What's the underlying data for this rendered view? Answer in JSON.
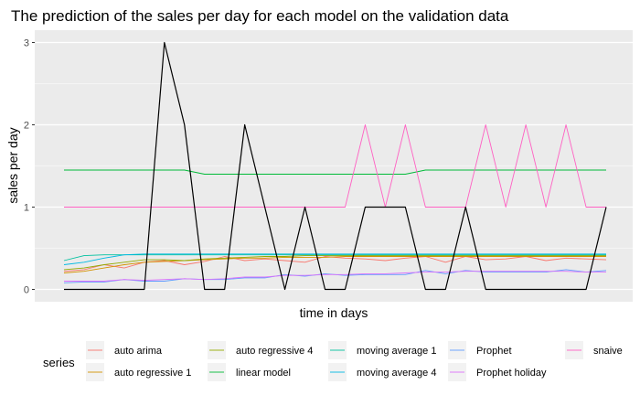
{
  "chart_data": {
    "type": "line",
    "title": "The prediction of the sales per day for each model on the validation data",
    "xlabel": "time in days",
    "ylabel": "sales per day",
    "ylim": [
      -0.15,
      3.15
    ],
    "yticks": [
      0,
      1,
      2,
      3
    ],
    "grid": true,
    "legend_position": "bottom",
    "legend_title": "series",
    "n_days": 28,
    "series": [
      {
        "name": "auto arima",
        "color": "#F8766D",
        "values": [
          0.22,
          0.24,
          0.3,
          0.26,
          0.33,
          0.35,
          0.3,
          0.34,
          0.4,
          0.35,
          0.37,
          0.35,
          0.33,
          0.4,
          0.38,
          0.37,
          0.35,
          0.38,
          0.4,
          0.33,
          0.4,
          0.36,
          0.37,
          0.4,
          0.35,
          0.38,
          0.37,
          0.36
        ]
      },
      {
        "name": "auto regressive 1",
        "color": "#D39200",
        "values": [
          0.2,
          0.22,
          0.26,
          0.3,
          0.33,
          0.34,
          0.35,
          0.36,
          0.37,
          0.38,
          0.38,
          0.39,
          0.39,
          0.39,
          0.4,
          0.4,
          0.4,
          0.4,
          0.4,
          0.4,
          0.4,
          0.4,
          0.4,
          0.4,
          0.4,
          0.4,
          0.4,
          0.4
        ]
      },
      {
        "name": "auto regressive 4",
        "color": "#93AA00",
        "values": [
          0.24,
          0.26,
          0.3,
          0.33,
          0.36,
          0.36,
          0.35,
          0.37,
          0.38,
          0.39,
          0.4,
          0.4,
          0.41,
          0.41,
          0.41,
          0.41,
          0.41,
          0.41,
          0.41,
          0.41,
          0.41,
          0.41,
          0.41,
          0.41,
          0.41,
          0.41,
          0.41,
          0.41
        ]
      },
      {
        "name": "linear model",
        "color": "#00BA38",
        "values": [
          1.45,
          1.45,
          1.45,
          1.45,
          1.45,
          1.45,
          1.45,
          1.4,
          1.4,
          1.4,
          1.4,
          1.4,
          1.4,
          1.4,
          1.4,
          1.4,
          1.4,
          1.4,
          1.45,
          1.45,
          1.45,
          1.45,
          1.45,
          1.45,
          1.45,
          1.45,
          1.45,
          1.45
        ]
      },
      {
        "name": "moving average 1",
        "color": "#00C19F",
        "values": [
          0.35,
          0.41,
          0.42,
          0.42,
          0.42,
          0.42,
          0.42,
          0.42,
          0.42,
          0.42,
          0.42,
          0.42,
          0.42,
          0.42,
          0.42,
          0.42,
          0.42,
          0.42,
          0.42,
          0.42,
          0.42,
          0.42,
          0.42,
          0.42,
          0.42,
          0.42,
          0.42,
          0.42
        ]
      },
      {
        "name": "moving average 4",
        "color": "#00B9E3",
        "values": [
          0.3,
          0.33,
          0.38,
          0.42,
          0.43,
          0.43,
          0.43,
          0.43,
          0.43,
          0.43,
          0.43,
          0.43,
          0.43,
          0.43,
          0.43,
          0.43,
          0.43,
          0.43,
          0.43,
          0.43,
          0.43,
          0.43,
          0.43,
          0.43,
          0.43,
          0.43,
          0.43,
          0.43
        ]
      },
      {
        "name": "Prophet",
        "color": "#619CFF",
        "values": [
          0.08,
          0.09,
          0.09,
          0.12,
          0.1,
          0.1,
          0.13,
          0.12,
          0.12,
          0.14,
          0.14,
          0.18,
          0.16,
          0.19,
          0.17,
          0.18,
          0.18,
          0.18,
          0.23,
          0.19,
          0.23,
          0.21,
          0.21,
          0.21,
          0.21,
          0.24,
          0.21,
          0.23
        ]
      },
      {
        "name": "Prophet holiday",
        "color": "#DB72FB",
        "values": [
          0.1,
          0.1,
          0.1,
          0.12,
          0.11,
          0.12,
          0.13,
          0.12,
          0.13,
          0.15,
          0.15,
          0.17,
          0.17,
          0.18,
          0.18,
          0.19,
          0.19,
          0.2,
          0.21,
          0.21,
          0.22,
          0.22,
          0.22,
          0.22,
          0.22,
          0.22,
          0.21,
          0.21
        ]
      },
      {
        "name": "snaive",
        "color": "#FF61C3",
        "values": [
          1,
          1,
          1,
          1,
          1,
          1,
          1,
          1,
          1,
          1,
          1,
          1,
          1,
          1,
          1,
          2,
          1,
          2,
          1,
          1,
          1,
          2,
          1,
          2,
          1,
          2,
          1,
          1
        ]
      },
      {
        "name": "",
        "color": "#000000",
        "in_legend": false,
        "values": [
          0,
          0,
          0,
          0,
          0,
          3,
          2,
          0,
          0,
          2,
          1,
          0,
          1,
          0,
          0,
          1,
          1,
          1,
          0,
          0,
          1,
          0,
          0,
          0,
          0,
          0,
          0,
          1
        ]
      }
    ]
  }
}
